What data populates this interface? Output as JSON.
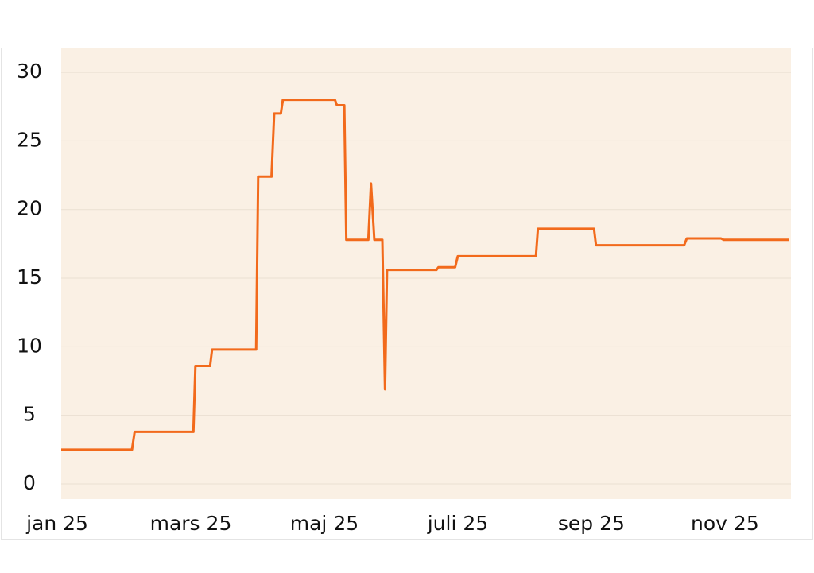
{
  "chart_data": {
    "type": "line",
    "x": [
      0,
      1.06,
      1.1,
      1.98,
      2.01,
      2.23,
      2.26,
      2.92,
      2.95,
      3.15,
      3.19,
      3.29,
      3.32,
      4.1,
      4.13,
      4.24,
      4.27,
      4.6,
      4.64,
      4.69,
      4.81,
      4.85,
      4.88,
      5.62,
      5.65,
      5.9,
      5.94,
      7.11,
      7.14,
      7.98,
      8.01,
      9.33,
      9.37,
      9.88,
      9.92,
      10.9
    ],
    "series": [
      {
        "color": "#f26a1b",
        "values": [
          2.5,
          2.5,
          3.8,
          3.8,
          8.6,
          8.6,
          9.8,
          9.8,
          22.4,
          22.4,
          27,
          27,
          28,
          28,
          27.6,
          27.6,
          17.8,
          17.8,
          21.9,
          17.8,
          17.8,
          6.9,
          15.6,
          15.6,
          15.8,
          15.8,
          16.6,
          16.6,
          18.6,
          18.6,
          17.4,
          17.4,
          17.9,
          17.9,
          17.8,
          17.8
        ]
      }
    ],
    "xlim": [
      0,
      10.93
    ],
    "xticks": [
      {
        "value": 0,
        "label": "jan 25"
      },
      {
        "value": 2,
        "label": "mars 25"
      },
      {
        "value": 4,
        "label": "maj 25"
      },
      {
        "value": 6,
        "label": "juli 25"
      },
      {
        "value": 8,
        "label": "sep 25"
      },
      {
        "value": 10,
        "label": "nov 25"
      }
    ],
    "ylim": [
      -1.1,
      31.8
    ],
    "yticks": [
      0,
      5,
      10,
      15,
      20,
      25,
      30
    ],
    "grid": true,
    "background": "#faf0e4"
  }
}
